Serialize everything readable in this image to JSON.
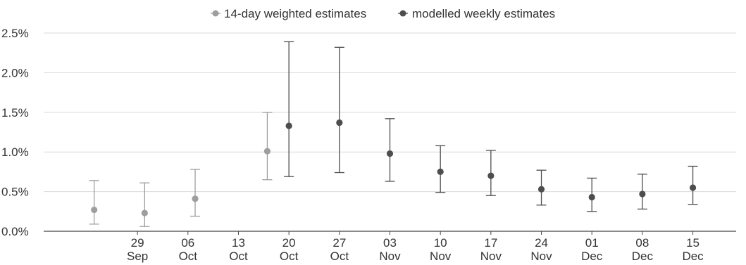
{
  "chart_data": {
    "type": "scatter",
    "legend_position": "top-center",
    "grid": "horizontal",
    "x_ticks": [
      {
        "day": "29",
        "month": "Sep"
      },
      {
        "day": "06",
        "month": "Oct"
      },
      {
        "day": "13",
        "month": "Oct"
      },
      {
        "day": "20",
        "month": "Oct"
      },
      {
        "day": "27",
        "month": "Oct"
      },
      {
        "day": "03",
        "month": "Nov"
      },
      {
        "day": "10",
        "month": "Nov"
      },
      {
        "day": "17",
        "month": "Nov"
      },
      {
        "day": "24",
        "month": "Nov"
      },
      {
        "day": "01",
        "month": "Dec"
      },
      {
        "day": "08",
        "month": "Dec"
      },
      {
        "day": "15",
        "month": "Dec"
      }
    ],
    "x_tick_dates": [
      "2021-09-29",
      "2021-10-06",
      "2021-10-13",
      "2021-10-20",
      "2021-10-27",
      "2021-11-03",
      "2021-11-10",
      "2021-11-17",
      "2021-11-24",
      "2021-12-01",
      "2021-12-08",
      "2021-12-15"
    ],
    "x_range": [
      "2021-09-16",
      "2021-12-21"
    ],
    "y_ticks": [
      "0.0%",
      "0.5%",
      "1.0%",
      "1.5%",
      "2.0%",
      "2.5%"
    ],
    "y_tick_values": [
      0,
      0.5,
      1.0,
      1.5,
      2.0,
      2.5
    ],
    "ylim": [
      0,
      2.5
    ],
    "series": [
      {
        "name": "14-day weighted estimates",
        "color": "#9e9e9e",
        "points": [
          {
            "x": "2021-09-23",
            "y": 0.27,
            "low": 0.09,
            "high": 0.64
          },
          {
            "x": "2021-09-30",
            "y": 0.23,
            "low": 0.06,
            "high": 0.61
          },
          {
            "x": "2021-10-07",
            "y": 0.41,
            "low": 0.19,
            "high": 0.78
          },
          {
            "x": "2021-10-17",
            "y": 1.01,
            "low": 0.65,
            "high": 1.5
          }
        ]
      },
      {
        "name": "modelled weekly estimates",
        "color": "#4d4d4d",
        "points": [
          {
            "x": "2021-10-20",
            "y": 1.33,
            "low": 0.69,
            "high": 2.39
          },
          {
            "x": "2021-10-27",
            "y": 1.37,
            "low": 0.74,
            "high": 2.32
          },
          {
            "x": "2021-11-03",
            "y": 0.98,
            "low": 0.63,
            "high": 1.42
          },
          {
            "x": "2021-11-10",
            "y": 0.75,
            "low": 0.49,
            "high": 1.08
          },
          {
            "x": "2021-11-17",
            "y": 0.7,
            "low": 0.45,
            "high": 1.02
          },
          {
            "x": "2021-11-24",
            "y": 0.53,
            "low": 0.33,
            "high": 0.77
          },
          {
            "x": "2021-12-01",
            "y": 0.43,
            "low": 0.25,
            "high": 0.67
          },
          {
            "x": "2021-12-08",
            "y": 0.47,
            "low": 0.28,
            "high": 0.72
          },
          {
            "x": "2021-12-15",
            "y": 0.55,
            "low": 0.34,
            "high": 0.82
          }
        ]
      }
    ]
  }
}
